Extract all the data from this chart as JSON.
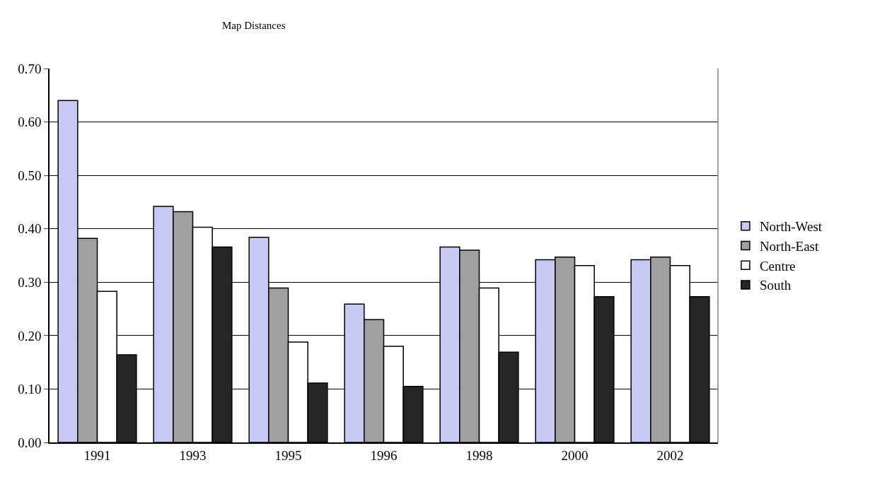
{
  "chart_data": {
    "type": "bar",
    "title": "Map Distances",
    "categories": [
      "1991",
      "1993",
      "1995",
      "1996",
      "1998",
      "2000",
      "2002"
    ],
    "series": [
      {
        "name": "North-West",
        "color": "#c8c8f4",
        "values": [
          0.64,
          0.442,
          0.384,
          0.259,
          0.366,
          0.342,
          0.342
        ]
      },
      {
        "name": "North-East",
        "color": "#a0a0a0",
        "values": [
          0.382,
          0.432,
          0.289,
          0.23,
          0.36,
          0.347,
          0.347
        ]
      },
      {
        "name": "Centre",
        "color": "#ffffff",
        "values": [
          0.283,
          0.403,
          0.188,
          0.18,
          0.289,
          0.331,
          0.331
        ]
      },
      {
        "name": "South",
        "color": "#262626",
        "values": [
          0.164,
          0.366,
          0.111,
          0.105,
          0.169,
          0.273,
          0.273
        ]
      }
    ],
    "ylim": [
      0,
      0.7
    ],
    "yticks": [
      {
        "value": 0,
        "label": "0.00"
      },
      {
        "value": 0.1,
        "label": "0.10"
      },
      {
        "value": 0.2,
        "label": "0.20"
      },
      {
        "value": 0.3,
        "label": "0.30"
      },
      {
        "value": 0.4,
        "label": "0.40"
      },
      {
        "value": 0.5,
        "label": "0.50"
      },
      {
        "value": 0.6,
        "label": "0.60"
      },
      {
        "value": 0.7,
        "label": "0.70"
      }
    ],
    "grid": "y",
    "legend": "right"
  }
}
